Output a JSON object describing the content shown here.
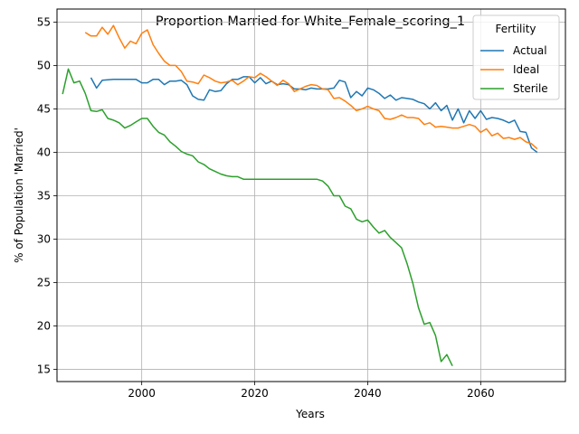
{
  "chart_data": {
    "type": "line",
    "title": "Proportion Married for White_Female_scoring_1",
    "xlabel": "Years",
    "ylabel": "% of Population 'Married'",
    "xlim": [
      1985,
      2075
    ],
    "ylim": [
      13.6,
      56.5
    ],
    "x_ticks": [
      2000,
      2020,
      2040,
      2060
    ],
    "y_ticks": [
      15,
      20,
      25,
      30,
      35,
      40,
      45,
      50,
      55
    ],
    "grid": true,
    "legend": {
      "title": "Fertility",
      "position": "top-right"
    },
    "series": [
      {
        "name": "Actual",
        "color": "#1f77b4",
        "x": [
          1991,
          1992,
          1993,
          1994,
          1995,
          1996,
          1997,
          1998,
          1999,
          2000,
          2001,
          2002,
          2003,
          2004,
          2005,
          2006,
          2007,
          2008,
          2009,
          2010,
          2011,
          2012,
          2013,
          2014,
          2015,
          2016,
          2017,
          2018,
          2019,
          2020,
          2021,
          2022,
          2023,
          2024,
          2025,
          2026,
          2027,
          2028,
          2029,
          2030,
          2031,
          2032,
          2033,
          2034,
          2035,
          2036,
          2037,
          2038,
          2039,
          2040,
          2041,
          2042,
          2043,
          2044,
          2045,
          2046,
          2047,
          2048,
          2049,
          2050,
          2051,
          2052,
          2053,
          2054,
          2055,
          2056,
          2057,
          2058,
          2059,
          2060,
          2061,
          2062,
          2063,
          2064,
          2065,
          2066,
          2067,
          2068,
          2069,
          2070
        ],
        "y": [
          48.6,
          47.4,
          48.3,
          48.35,
          48.4,
          48.4,
          48.4,
          48.4,
          48.4,
          48.0,
          48.0,
          48.4,
          48.4,
          47.8,
          48.2,
          48.2,
          48.3,
          47.8,
          46.5,
          46.1,
          46.0,
          47.2,
          47.0,
          47.1,
          47.9,
          48.4,
          48.4,
          48.7,
          48.7,
          48.0,
          48.6,
          47.9,
          48.2,
          47.8,
          47.9,
          47.8,
          47.3,
          47.3,
          47.2,
          47.4,
          47.3,
          47.3,
          47.3,
          47.4,
          48.3,
          48.1,
          46.3,
          47.0,
          46.5,
          47.4,
          47.2,
          46.8,
          46.2,
          46.6,
          46.0,
          46.3,
          46.2,
          46.1,
          45.8,
          45.6,
          45.0,
          45.7,
          44.8,
          45.4,
          43.7,
          45.0,
          43.4,
          44.8,
          43.9,
          44.8,
          43.8,
          44.0,
          43.9,
          43.7,
          43.4,
          43.7,
          42.4,
          42.3,
          40.5,
          40.0
        ]
      },
      {
        "name": "Ideal",
        "color": "#ff7f0e",
        "x": [
          1990,
          1991,
          1992,
          1993,
          1994,
          1995,
          1996,
          1997,
          1998,
          1999,
          2000,
          2001,
          2002,
          2003,
          2004,
          2005,
          2006,
          2007,
          2008,
          2009,
          2010,
          2011,
          2012,
          2013,
          2014,
          2015,
          2016,
          2017,
          2018,
          2019,
          2020,
          2021,
          2022,
          2023,
          2024,
          2025,
          2026,
          2027,
          2028,
          2029,
          2030,
          2031,
          2032,
          2033,
          2034,
          2035,
          2036,
          2037,
          2038,
          2039,
          2040,
          2041,
          2042,
          2043,
          2044,
          2045,
          2046,
          2047,
          2048,
          2049,
          2050,
          2051,
          2052,
          2053,
          2054,
          2055,
          2056,
          2057,
          2058,
          2059,
          2060,
          2061,
          2062,
          2063,
          2064,
          2065,
          2066,
          2067,
          2068,
          2069,
          2070
        ],
        "y": [
          53.8,
          53.4,
          53.4,
          54.4,
          53.6,
          54.6,
          53.2,
          52.0,
          52.8,
          52.5,
          53.7,
          54.1,
          52.4,
          51.4,
          50.5,
          50.0,
          50.0,
          49.3,
          48.2,
          48.1,
          47.9,
          48.9,
          48.6,
          48.2,
          48.0,
          48.1,
          48.3,
          47.8,
          48.2,
          48.7,
          48.6,
          49.1,
          48.7,
          48.2,
          47.7,
          48.3,
          47.9,
          47.0,
          47.3,
          47.6,
          47.8,
          47.7,
          47.3,
          47.2,
          46.2,
          46.3,
          45.9,
          45.4,
          44.8,
          45.0,
          45.3,
          45.0,
          44.8,
          43.9,
          43.8,
          44.0,
          44.3,
          44.0,
          44.0,
          43.9,
          43.2,
          43.4,
          42.9,
          43.0,
          42.9,
          42.8,
          42.8,
          43.0,
          43.2,
          43.0,
          42.3,
          42.7,
          41.9,
          42.2,
          41.6,
          41.7,
          41.5,
          41.7,
          41.2,
          41.0,
          40.4
        ]
      },
      {
        "name": "Sterile",
        "color": "#2ca02c",
        "x": [
          1986,
          1987,
          1988,
          1989,
          1990,
          1991,
          1992,
          1993,
          1994,
          1995,
          1996,
          1997,
          1998,
          1999,
          2000,
          2001,
          2002,
          2003,
          2004,
          2005,
          2006,
          2007,
          2008,
          2009,
          2010,
          2011,
          2012,
          2013,
          2014,
          2015,
          2016,
          2017,
          2018,
          2019,
          2020,
          2021,
          2022,
          2023,
          2024,
          2025,
          2026,
          2027,
          2028,
          2029,
          2030,
          2031,
          2032,
          2033,
          2034,
          2035,
          2036,
          2037,
          2038,
          2039,
          2040,
          2041,
          2042,
          2043,
          2044,
          2045,
          2046,
          2047,
          2048,
          2049,
          2050,
          2051,
          2052,
          2053,
          2054,
          2055
        ],
        "y": [
          46.7,
          49.6,
          48.0,
          48.2,
          46.8,
          44.8,
          44.7,
          44.9,
          43.9,
          43.7,
          43.4,
          42.8,
          43.1,
          43.5,
          43.9,
          43.9,
          43.0,
          42.3,
          42.0,
          41.2,
          40.7,
          40.1,
          39.8,
          39.6,
          38.9,
          38.6,
          38.1,
          37.8,
          37.5,
          37.3,
          37.2,
          37.2,
          36.9,
          36.9,
          36.9,
          36.9,
          36.9,
          36.9,
          36.9,
          36.9,
          36.9,
          36.9,
          36.9,
          36.9,
          36.9,
          36.9,
          36.7,
          36.1,
          35.0,
          35.0,
          33.8,
          33.5,
          32.3,
          32.0,
          32.2,
          31.4,
          30.7,
          31.0,
          30.2,
          29.6,
          29.0,
          27.1,
          24.9,
          22.1,
          20.2,
          20.4,
          18.9,
          15.9,
          16.7,
          15.4
        ]
      }
    ]
  }
}
